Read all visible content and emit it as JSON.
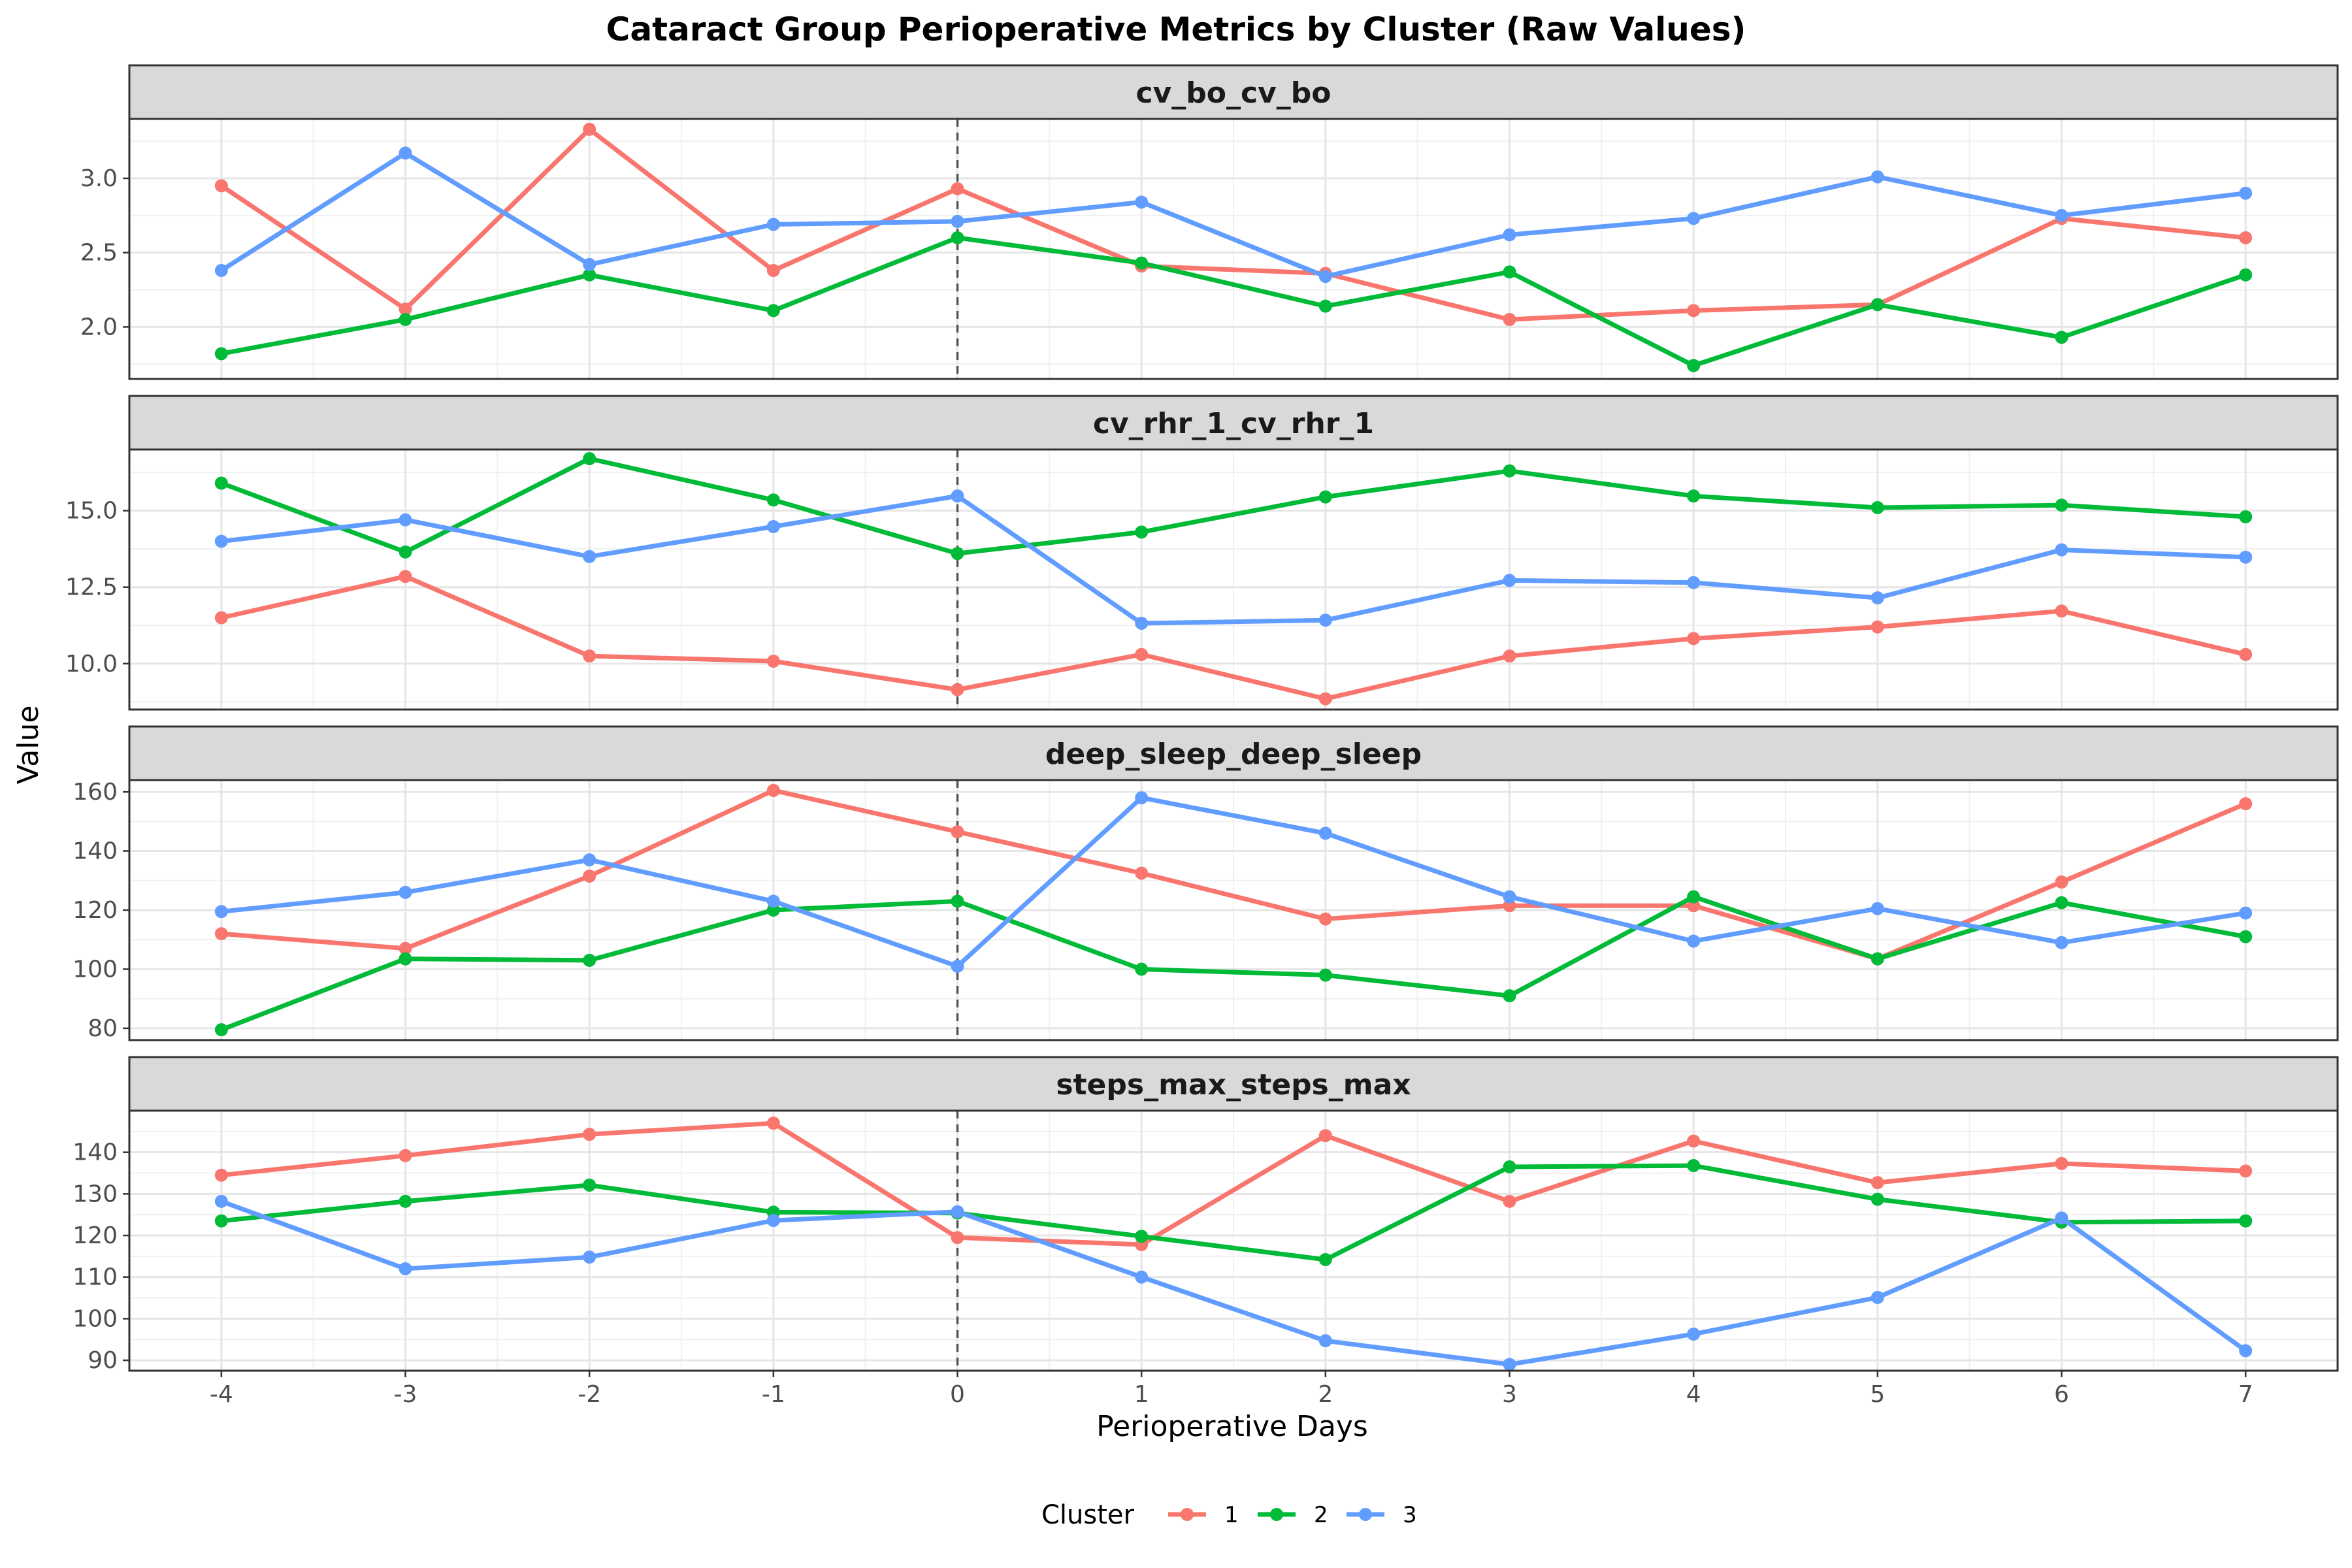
{
  "chart_data": {
    "type": "line",
    "title": "Cataract Group Perioperative Metrics by Cluster (Raw Values)",
    "xlabel": "Perioperative Days",
    "ylabel": "Value",
    "x": [
      -4,
      -3,
      -2,
      -1,
      0,
      1,
      2,
      3,
      4,
      5,
      6,
      7
    ],
    "xlim": [
      -4.5,
      7.5
    ],
    "reference_line_x": 0,
    "grid": true,
    "legend": {
      "title": "Cluster",
      "position": "bottom",
      "items": [
        {
          "label": "1",
          "color": "#F8766D"
        },
        {
          "label": "2",
          "color": "#00BA38"
        },
        {
          "label": "3",
          "color": "#619CFF"
        }
      ]
    },
    "panels": [
      {
        "title": "cv_bo_cv_bo",
        "ylim": [
          1.65,
          3.4
        ],
        "yticks": [
          2.0,
          2.5,
          3.0
        ],
        "ytick_labels": [
          "2.0",
          "2.5",
          "3.0"
        ],
        "series": [
          {
            "name": "1",
            "color": "#F8766D",
            "values": [
              2.95,
              2.12,
              3.33,
              2.38,
              2.93,
              2.41,
              2.36,
              2.05,
              2.11,
              2.15,
              2.73,
              2.6
            ]
          },
          {
            "name": "2",
            "color": "#00BA38",
            "values": [
              1.82,
              2.05,
              2.35,
              2.11,
              2.6,
              2.43,
              2.14,
              2.37,
              1.74,
              2.15,
              1.93,
              2.35
            ]
          },
          {
            "name": "3",
            "color": "#619CFF",
            "values": [
              2.38,
              3.17,
              2.42,
              2.69,
              2.71,
              2.84,
              2.34,
              2.62,
              2.73,
              3.01,
              2.75,
              2.9
            ]
          }
        ]
      },
      {
        "title": "cv_rhr_1_cv_rhr_1",
        "ylim": [
          8.5,
          17.0
        ],
        "yticks": [
          10.0,
          12.5,
          15.0
        ],
        "ytick_labels": [
          "10.0",
          "12.5",
          "15.0"
        ],
        "series": [
          {
            "name": "1",
            "color": "#F8766D",
            "values": [
              11.5,
              12.85,
              10.25,
              10.08,
              9.15,
              10.3,
              8.85,
              10.25,
              10.82,
              11.2,
              11.72,
              10.3
            ]
          },
          {
            "name": "2",
            "color": "#00BA38",
            "values": [
              15.9,
              13.65,
              16.7,
              15.35,
              13.6,
              14.3,
              15.45,
              16.3,
              15.48,
              15.1,
              15.18,
              14.8
            ]
          },
          {
            "name": "3",
            "color": "#619CFF",
            "values": [
              14.0,
              14.7,
              13.5,
              14.48,
              15.48,
              11.32,
              11.42,
              12.72,
              12.65,
              12.15,
              13.72,
              13.48
            ]
          }
        ]
      },
      {
        "title": "deep_sleep_deep_sleep",
        "ylim": [
          76,
          164
        ],
        "yticks": [
          80,
          100,
          120,
          140,
          160
        ],
        "ytick_labels": [
          "80",
          "100",
          "120",
          "140",
          "160"
        ],
        "series": [
          {
            "name": "1",
            "color": "#F8766D",
            "values": [
              112,
              107,
              131.5,
              160.5,
              146.5,
              132.5,
              117,
              121.5,
              121.5,
              103.5,
              129.5,
              156
            ]
          },
          {
            "name": "2",
            "color": "#00BA38",
            "values": [
              79.5,
              103.5,
              103,
              120,
              123,
              100,
              98,
              91,
              124.5,
              103.5,
              122.5,
              111
            ]
          },
          {
            "name": "3",
            "color": "#619CFF",
            "values": [
              119.5,
              126,
              137,
              123,
              101,
              158,
              146,
              124.5,
              109.5,
              120.5,
              109,
              119
            ]
          }
        ]
      },
      {
        "title": "steps_max_steps_max",
        "ylim": [
          87.5,
          150
        ],
        "yticks": [
          90,
          100,
          110,
          120,
          130,
          140
        ],
        "ytick_labels": [
          "90",
          "100",
          "110",
          "120",
          "130",
          "140"
        ],
        "series": [
          {
            "name": "1",
            "color": "#F8766D",
            "values": [
              134.5,
              139.2,
              144.3,
              147,
              119.5,
              117.8,
              144,
              128.2,
              142.7,
              132.7,
              137.3,
              135.5
            ]
          },
          {
            "name": "2",
            "color": "#00BA38",
            "values": [
              123.5,
              128.2,
              132.1,
              125.6,
              125.4,
              119.8,
              114.2,
              136.5,
              136.8,
              128.7,
              123.2,
              123.5
            ]
          },
          {
            "name": "3",
            "color": "#619CFF",
            "values": [
              128.2,
              112,
              114.8,
              123.6,
              125.7,
              110,
              94.7,
              89,
              96.3,
              105.1,
              124.2,
              92.3
            ]
          }
        ]
      }
    ]
  }
}
